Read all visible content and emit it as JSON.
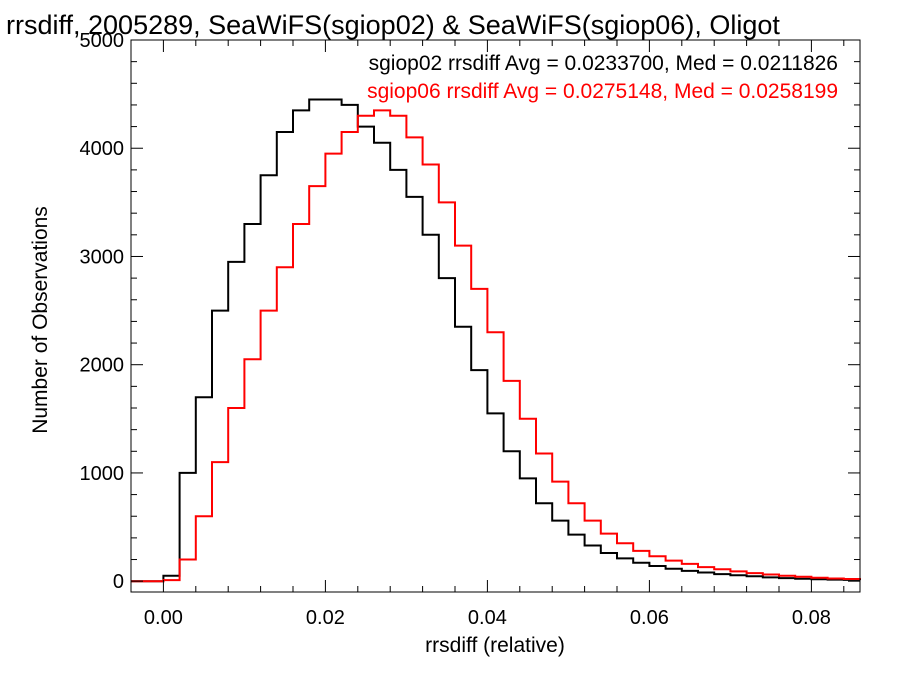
{
  "chart_data": {
    "type": "line",
    "title": "rrsdiff, 2005289, SeaWiFS(sgiop02) & SeaWiFS(sgiop06), Oligot",
    "xlabel": "rrsdiff (relative)",
    "ylabel": "Number of Observations",
    "xlim": [
      -0.004,
      0.086
    ],
    "ylim": [
      -100,
      5000
    ],
    "xticks": [
      0.0,
      0.02,
      0.04,
      0.06,
      0.08
    ],
    "xtick_labels": [
      "0.00",
      "0.02",
      "0.04",
      "0.06",
      "0.08"
    ],
    "yticks": [
      0,
      1000,
      2000,
      3000,
      4000,
      5000
    ],
    "ytick_labels": [
      "0",
      "1000",
      "2000",
      "3000",
      "4000",
      "5000"
    ],
    "grid": false,
    "legend_position": "top-right",
    "step": true,
    "x": [
      -0.004,
      -0.002,
      0.0,
      0.002,
      0.004,
      0.006,
      0.008,
      0.01,
      0.012,
      0.014,
      0.016,
      0.018,
      0.02,
      0.022,
      0.024,
      0.026,
      0.028,
      0.03,
      0.032,
      0.034,
      0.036,
      0.038,
      0.04,
      0.042,
      0.044,
      0.046,
      0.048,
      0.05,
      0.052,
      0.054,
      0.056,
      0.058,
      0.06,
      0.062,
      0.064,
      0.066,
      0.068,
      0.07,
      0.072,
      0.074,
      0.076,
      0.078,
      0.08,
      0.082,
      0.084,
      0.086
    ],
    "series": [
      {
        "name": "sgiop02",
        "color": "#000000",
        "legend": "sgiop02 rrsdiff Avg = 0.0233700, Med = 0.0211826",
        "values": [
          0,
          0,
          50,
          1000,
          1700,
          2500,
          2950,
          3300,
          3750,
          4150,
          4350,
          4450,
          4450,
          4400,
          4200,
          4050,
          3800,
          3550,
          3200,
          2800,
          2350,
          1950,
          1550,
          1200,
          950,
          720,
          560,
          430,
          330,
          260,
          210,
          170,
          140,
          115,
          95,
          80,
          65,
          55,
          45,
          35,
          28,
          22,
          18,
          15,
          12,
          10
        ]
      },
      {
        "name": "sgiop06",
        "color": "#ff0000",
        "legend": "sgiop06 rrsdiff Avg = 0.0275148, Med = 0.0258199",
        "values": [
          0,
          0,
          10,
          200,
          600,
          1100,
          1600,
          2050,
          2500,
          2900,
          3300,
          3650,
          3950,
          4150,
          4300,
          4350,
          4300,
          4100,
          3850,
          3500,
          3100,
          2700,
          2300,
          1850,
          1500,
          1180,
          920,
          720,
          560,
          440,
          350,
          280,
          230,
          190,
          160,
          130,
          110,
          90,
          75,
          62,
          50,
          40,
          32,
          25,
          20,
          16
        ]
      }
    ]
  }
}
